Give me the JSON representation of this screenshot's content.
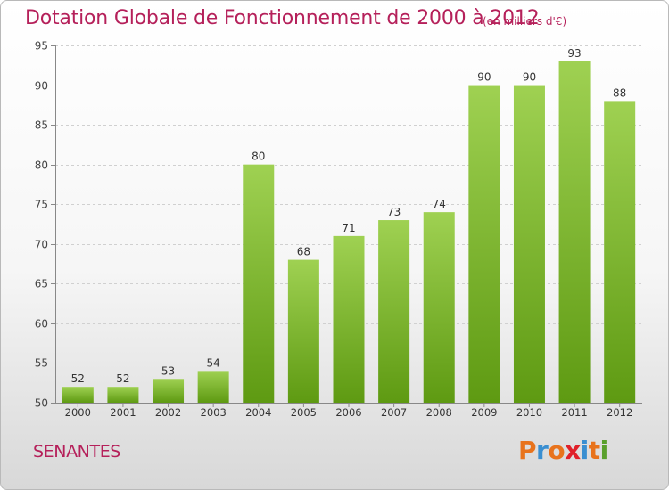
{
  "header": {
    "title": "Dotation Globale de Fonctionnement de 2000 à 2012",
    "unit_note": "(en milliers d'€)"
  },
  "footer": {
    "city": "SENANTES",
    "logo_text": "Proxiti"
  },
  "colors": {
    "text_accent": "#b5205a",
    "bar_top": "#9fd152",
    "bar_bottom": "#5e9a12",
    "logo_letters": [
      "#e8731c",
      "#3a8fd1",
      "#e8731c",
      "#e0202a",
      "#3a8fd1",
      "#e8731c",
      "#5aa02c"
    ]
  },
  "chart_data": {
    "type": "bar",
    "title": "Dotation Globale de Fonctionnement de 2000 à 2012",
    "subtitle": "(en milliers d'€)",
    "xlabel": "",
    "ylabel": "",
    "categories": [
      "2000",
      "2001",
      "2002",
      "2003",
      "2004",
      "2005",
      "2006",
      "2007",
      "2008",
      "2009",
      "2010",
      "2011",
      "2012"
    ],
    "values": [
      52,
      52,
      53,
      54,
      80,
      68,
      71,
      73,
      74,
      90,
      90,
      93,
      88
    ],
    "ylim": [
      50,
      95
    ],
    "yticks": [
      50,
      55,
      60,
      65,
      70,
      75,
      80,
      85,
      90,
      95
    ],
    "grid": "horizontal-dashed",
    "data_labels": true
  }
}
